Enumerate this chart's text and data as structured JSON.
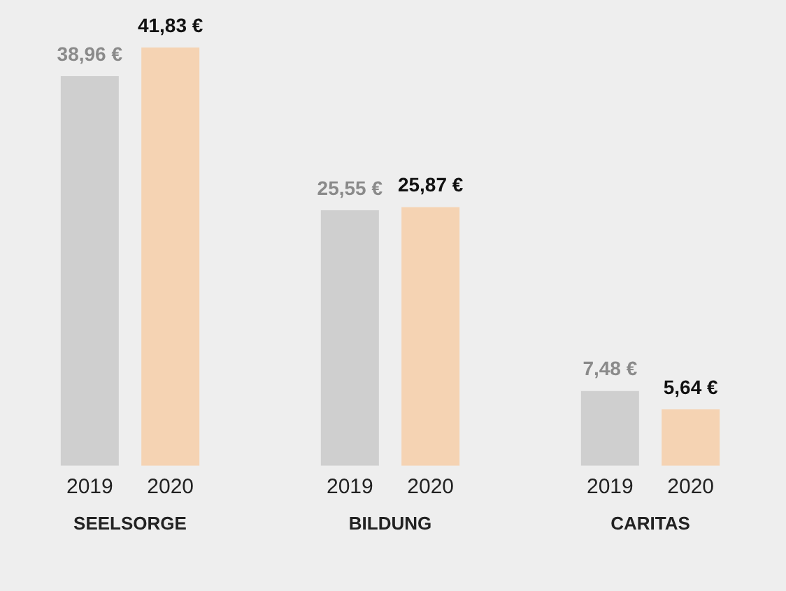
{
  "chart_data": {
    "type": "bar",
    "categories": [
      "SEELSORGE",
      "BILDUNG",
      "CARITAS"
    ],
    "series": [
      {
        "name": "2019",
        "color": "#cfcfcf",
        "values": [
          38.96,
          25.55,
          7.48
        ],
        "value_labels": [
          "38,96 €",
          "25,55 €",
          "7,48 €"
        ]
      },
      {
        "name": "2020",
        "color": "#f5d3b3",
        "values": [
          41.83,
          25.87,
          5.64
        ],
        "value_labels": [
          "41,83 €",
          "25,87 €",
          "5,64 €"
        ]
      }
    ],
    "legend": false,
    "grid": false
  }
}
